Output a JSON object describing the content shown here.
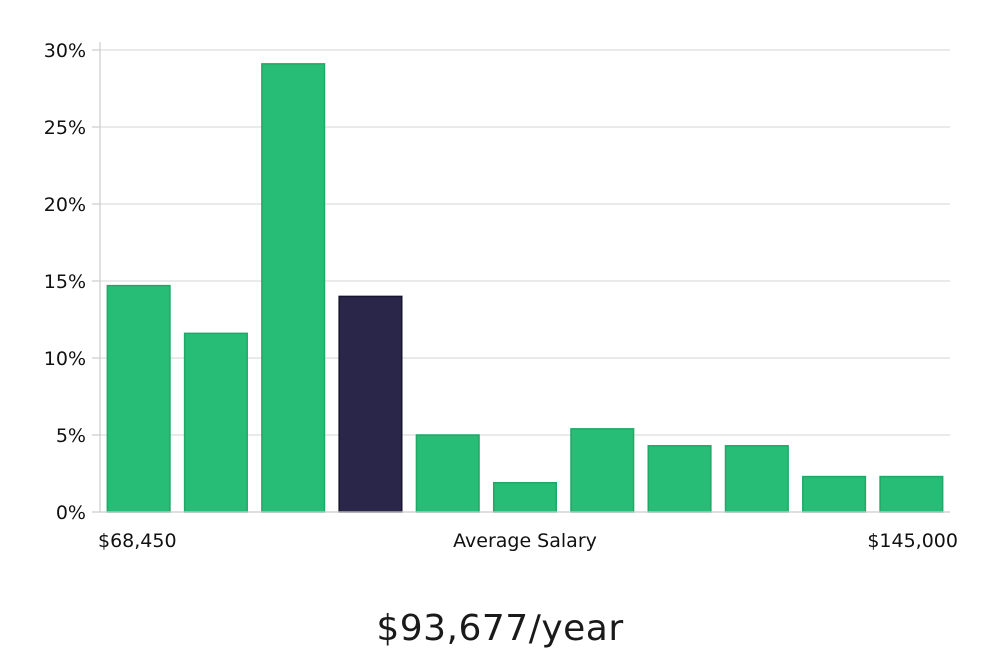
{
  "chart_data": {
    "type": "bar",
    "title": "",
    "xlabel": "Average Salary",
    "ylabel": "",
    "x_min_label": "$68,450",
    "x_max_label": "$145,000",
    "y_ticks": [
      0,
      5,
      10,
      15,
      20,
      25,
      30
    ],
    "y_tick_suffix": "%",
    "ylim": [
      0,
      30
    ],
    "grid": true,
    "values": [
      14.7,
      11.6,
      29.1,
      14.0,
      5.0,
      1.9,
      5.4,
      4.3,
      4.3,
      2.3,
      2.3
    ],
    "highlight_index": 3,
    "colors": {
      "bar": "#27bd77",
      "bar_edge": "#1fa866",
      "highlight": "#29264a",
      "highlight_edge": "#16142e",
      "grid": "#dedede",
      "axis": "#cccccc"
    }
  },
  "average_salary_caption": "$93,677/year"
}
